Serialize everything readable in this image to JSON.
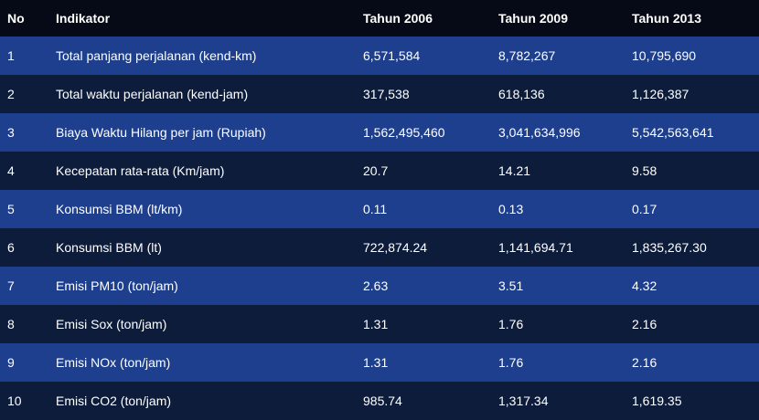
{
  "headers": {
    "no": "No",
    "indikator": "Indikator",
    "y2006": "Tahun 2006",
    "y2009": "Tahun 2009",
    "y2013": "Tahun 2013"
  },
  "rows": [
    {
      "no": "1",
      "indikator": "Total panjang perjalanan (kend-km)",
      "y2006": "6,571,584",
      "y2009": "8,782,267",
      "y2013": "10,795,690"
    },
    {
      "no": "2",
      "indikator": "Total waktu perjalanan (kend-jam)",
      "y2006": "317,538",
      "y2009": "618,136",
      "y2013": "1,126,387"
    },
    {
      "no": "3",
      "indikator": "Biaya Waktu Hilang per jam (Rupiah)",
      "y2006": "1,562,495,460",
      "y2009": "3,041,634,996",
      "y2013": "5,542,563,641"
    },
    {
      "no": "4",
      "indikator": "Kecepatan rata-rata (Km/jam)",
      "y2006": "20.7",
      "y2009": "14.21",
      "y2013": "9.58"
    },
    {
      "no": "5",
      "indikator": "Konsumsi BBM (lt/km)",
      "y2006": "0.11",
      "y2009": "0.13",
      "y2013": "0.17"
    },
    {
      "no": "6",
      "indikator": "Konsumsi BBM (lt)",
      "y2006": "722,874.24",
      "y2009": "1,141,694.71",
      "y2013": "1,835,267.30"
    },
    {
      "no": "7",
      "indikator": "Emisi PM10 (ton/jam)",
      "y2006": "2.63",
      "y2009": "3.51",
      "y2013": "4.32"
    },
    {
      "no": "8",
      "indikator": "Emisi Sox (ton/jam)",
      "y2006": "1.31",
      "y2009": "1.76",
      "y2013": "2.16"
    },
    {
      "no": "9",
      "indikator": "Emisi NOx (ton/jam)",
      "y2006": "1.31",
      "y2009": "1.76",
      "y2013": "2.16"
    },
    {
      "no": "10",
      "indikator": "Emisi CO2 (ton/jam)",
      "y2006": "985.74",
      "y2009": "1,317.34",
      "y2013": "1,619.35"
    }
  ],
  "colors": {
    "header_bg": "#050a16",
    "row_odd_bg": "#1d3f8d",
    "row_even_bg": "#0d1c3b",
    "text": "#ffffff"
  }
}
